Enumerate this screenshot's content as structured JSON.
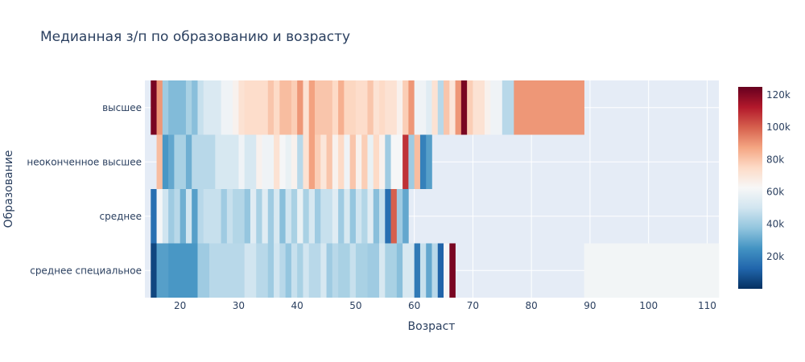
{
  "chart_data": {
    "type": "heatmap",
    "title": "Медианная з/п по образованию и возрасту",
    "xlabel": "Возраст",
    "ylabel": "Образование",
    "x_ticks": [
      20,
      30,
      40,
      50,
      60,
      70,
      80,
      90,
      100,
      110
    ],
    "xlim": [
      14,
      112
    ],
    "categories": [
      "среднее специальное",
      "среднее",
      "неоконченное высшее",
      "высшее"
    ],
    "zlim": [
      0,
      125000
    ],
    "colorbar_ticks": [
      20000,
      40000,
      60000,
      80000,
      100000,
      120000
    ],
    "colorbar_labels": [
      "20k",
      "40k",
      "60k",
      "80k",
      "100k",
      "120k"
    ],
    "colorscale": "RdBu reversed",
    "colorscale_stops": [
      "#053061",
      "#2166ac",
      "#4393c3",
      "#92c5de",
      "#d1e5f0",
      "#f7f7f7",
      "#fddbc7",
      "#f4a582",
      "#d6604d",
      "#b2182b",
      "#67001f"
    ],
    "rows": [
      {
        "name": "среднее специальное",
        "cells": [
          {
            "x0": 15,
            "x1": 16,
            "z": 5000
          },
          {
            "x0": 16,
            "x1": 18,
            "z": 28000
          },
          {
            "x0": 18,
            "x1": 23,
            "z": 26000
          },
          {
            "x0": 23,
            "x1": 25,
            "z": 40000
          },
          {
            "x0": 25,
            "x1": 31,
            "z": 45000
          },
          {
            "x0": 31,
            "x1": 33,
            "z": 50000
          },
          {
            "x0": 33,
            "x1": 35,
            "z": 45000
          },
          {
            "x0": 35,
            "x1": 36,
            "z": 40000
          },
          {
            "x0": 36,
            "x1": 37,
            "z": 50000
          },
          {
            "x0": 37,
            "x1": 38,
            "z": 45000
          },
          {
            "x0": 38,
            "x1": 39,
            "z": 38000
          },
          {
            "x0": 39,
            "x1": 40,
            "z": 48000
          },
          {
            "x0": 40,
            "x1": 41,
            "z": 42000
          },
          {
            "x0": 41,
            "x1": 42,
            "z": 50000
          },
          {
            "x0": 42,
            "x1": 44,
            "z": 45000
          },
          {
            "x0": 44,
            "x1": 45,
            "z": 52000
          },
          {
            "x0": 45,
            "x1": 46,
            "z": 40000
          },
          {
            "x0": 46,
            "x1": 47,
            "z": 45000
          },
          {
            "x0": 47,
            "x1": 49,
            "z": 42000
          },
          {
            "x0": 49,
            "x1": 50,
            "z": 48000
          },
          {
            "x0": 50,
            "x1": 52,
            "z": 42000
          },
          {
            "x0": 52,
            "x1": 54,
            "z": 40000
          },
          {
            "x0": 54,
            "x1": 55,
            "z": 52000
          },
          {
            "x0": 55,
            "x1": 57,
            "z": 42000
          },
          {
            "x0": 57,
            "x1": 58,
            "z": 36000
          },
          {
            "x0": 58,
            "x1": 60,
            "z": 52000
          },
          {
            "x0": 60,
            "x1": 61,
            "z": 18000
          },
          {
            "x0": 61,
            "x1": 62,
            "z": 48000
          },
          {
            "x0": 62,
            "x1": 63,
            "z": 30000
          },
          {
            "x0": 63,
            "x1": 64,
            "z": 45000
          },
          {
            "x0": 64,
            "x1": 65,
            "z": 12000
          },
          {
            "x0": 65,
            "x1": 66,
            "z": 62000
          },
          {
            "x0": 66,
            "x1": 67,
            "z": 122000
          },
          {
            "x0": 89,
            "x1": 112,
            "z": 61000
          }
        ]
      },
      {
        "name": "среднее",
        "cells": [
          {
            "x0": 15,
            "x1": 16,
            "z": 15000
          },
          {
            "x0": 16,
            "x1": 17,
            "z": 62000
          },
          {
            "x0": 17,
            "x1": 18,
            "z": 50000
          },
          {
            "x0": 18,
            "x1": 19,
            "z": 40000
          },
          {
            "x0": 19,
            "x1": 20,
            "z": 45000
          },
          {
            "x0": 20,
            "x1": 21,
            "z": 32000
          },
          {
            "x0": 21,
            "x1": 22,
            "z": 50000
          },
          {
            "x0": 22,
            "x1": 23,
            "z": 28000
          },
          {
            "x0": 23,
            "x1": 24,
            "z": 45000
          },
          {
            "x0": 24,
            "x1": 27,
            "z": 48000
          },
          {
            "x0": 27,
            "x1": 28,
            "z": 40000
          },
          {
            "x0": 28,
            "x1": 29,
            "z": 48000
          },
          {
            "x0": 29,
            "x1": 31,
            "z": 44000
          },
          {
            "x0": 31,
            "x1": 32,
            "z": 38000
          },
          {
            "x0": 32,
            "x1": 33,
            "z": 55000
          },
          {
            "x0": 33,
            "x1": 34,
            "z": 42000
          },
          {
            "x0": 34,
            "x1": 35,
            "z": 55000
          },
          {
            "x0": 35,
            "x1": 36,
            "z": 40000
          },
          {
            "x0": 36,
            "x1": 37,
            "z": 52000
          },
          {
            "x0": 37,
            "x1": 38,
            "z": 36000
          },
          {
            "x0": 38,
            "x1": 39,
            "z": 50000
          },
          {
            "x0": 39,
            "x1": 40,
            "z": 42000
          },
          {
            "x0": 40,
            "x1": 41,
            "z": 58000
          },
          {
            "x0": 41,
            "x1": 42,
            "z": 42000
          },
          {
            "x0": 42,
            "x1": 43,
            "z": 52000
          },
          {
            "x0": 43,
            "x1": 44,
            "z": 40000
          },
          {
            "x0": 44,
            "x1": 46,
            "z": 48000
          },
          {
            "x0": 46,
            "x1": 47,
            "z": 55000
          },
          {
            "x0": 47,
            "x1": 48,
            "z": 40000
          },
          {
            "x0": 48,
            "x1": 49,
            "z": 52000
          },
          {
            "x0": 49,
            "x1": 50,
            "z": 38000
          },
          {
            "x0": 50,
            "x1": 51,
            "z": 50000
          },
          {
            "x0": 51,
            "x1": 52,
            "z": 44000
          },
          {
            "x0": 52,
            "x1": 53,
            "z": 55000
          },
          {
            "x0": 53,
            "x1": 54,
            "z": 36000
          },
          {
            "x0": 54,
            "x1": 55,
            "z": 48000
          },
          {
            "x0": 55,
            "x1": 56,
            "z": 15000
          },
          {
            "x0": 56,
            "x1": 57,
            "z": 100000
          },
          {
            "x0": 57,
            "x1": 58,
            "z": 40000
          },
          {
            "x0": 58,
            "x1": 59,
            "z": 30000
          }
        ]
      },
      {
        "name": "неоконченное высшее",
        "cells": [
          {
            "x0": 16,
            "x1": 17,
            "z": 82000
          },
          {
            "x0": 17,
            "x1": 18,
            "z": 26000
          },
          {
            "x0": 18,
            "x1": 19,
            "z": 30000
          },
          {
            "x0": 19,
            "x1": 21,
            "z": 42000
          },
          {
            "x0": 21,
            "x1": 22,
            "z": 32000
          },
          {
            "x0": 22,
            "x1": 26,
            "z": 45000
          },
          {
            "x0": 26,
            "x1": 30,
            "z": 52000
          },
          {
            "x0": 30,
            "x1": 31,
            "z": 60000
          },
          {
            "x0": 31,
            "x1": 33,
            "z": 52000
          },
          {
            "x0": 33,
            "x1": 34,
            "z": 65000
          },
          {
            "x0": 34,
            "x1": 36,
            "z": 60000
          },
          {
            "x0": 36,
            "x1": 37,
            "z": 72000
          },
          {
            "x0": 37,
            "x1": 38,
            "z": 62000
          },
          {
            "x0": 38,
            "x1": 39,
            "z": 58000
          },
          {
            "x0": 39,
            "x1": 40,
            "z": 65000
          },
          {
            "x0": 40,
            "x1": 41,
            "z": 45000
          },
          {
            "x0": 41,
            "x1": 42,
            "z": 72000
          },
          {
            "x0": 42,
            "x1": 43,
            "z": 88000
          },
          {
            "x0": 43,
            "x1": 44,
            "z": 78000
          },
          {
            "x0": 44,
            "x1": 45,
            "z": 70000
          },
          {
            "x0": 45,
            "x1": 46,
            "z": 80000
          },
          {
            "x0": 46,
            "x1": 47,
            "z": 65000
          },
          {
            "x0": 47,
            "x1": 48,
            "z": 75000
          },
          {
            "x0": 48,
            "x1": 49,
            "z": 60000
          },
          {
            "x0": 49,
            "x1": 50,
            "z": 80000
          },
          {
            "x0": 50,
            "x1": 51,
            "z": 65000
          },
          {
            "x0": 51,
            "x1": 52,
            "z": 78000
          },
          {
            "x0": 52,
            "x1": 53,
            "z": 58000
          },
          {
            "x0": 53,
            "x1": 54,
            "z": 75000
          },
          {
            "x0": 54,
            "x1": 55,
            "z": 65000
          },
          {
            "x0": 55,
            "x1": 56,
            "z": 40000
          },
          {
            "x0": 56,
            "x1": 58,
            "z": 62000
          },
          {
            "x0": 58,
            "x1": 59,
            "z": 108000
          },
          {
            "x0": 59,
            "x1": 60,
            "z": 40000
          },
          {
            "x0": 60,
            "x1": 61,
            "z": 82000
          },
          {
            "x0": 61,
            "x1": 62,
            "z": 20000
          },
          {
            "x0": 62,
            "x1": 63,
            "z": 28000
          }
        ]
      },
      {
        "name": "высшее",
        "cells": [
          {
            "x0": 15,
            "x1": 16,
            "z": 122000
          },
          {
            "x0": 16,
            "x1": 17,
            "z": 90000
          },
          {
            "x0": 17,
            "x1": 18,
            "z": 40000
          },
          {
            "x0": 18,
            "x1": 21,
            "z": 35000
          },
          {
            "x0": 21,
            "x1": 22,
            "z": 42000
          },
          {
            "x0": 22,
            "x1": 23,
            "z": 36000
          },
          {
            "x0": 23,
            "x1": 24,
            "z": 48000
          },
          {
            "x0": 24,
            "x1": 27,
            "z": 53000
          },
          {
            "x0": 27,
            "x1": 29,
            "z": 60000
          },
          {
            "x0": 29,
            "x1": 30,
            "z": 65000
          },
          {
            "x0": 30,
            "x1": 31,
            "z": 72000
          },
          {
            "x0": 31,
            "x1": 35,
            "z": 74000
          },
          {
            "x0": 35,
            "x1": 36,
            "z": 80000
          },
          {
            "x0": 36,
            "x1": 37,
            "z": 75000
          },
          {
            "x0": 37,
            "x1": 39,
            "z": 82000
          },
          {
            "x0": 39,
            "x1": 40,
            "z": 78000
          },
          {
            "x0": 40,
            "x1": 41,
            "z": 90000
          },
          {
            "x0": 41,
            "x1": 42,
            "z": 72000
          },
          {
            "x0": 42,
            "x1": 43,
            "z": 88000
          },
          {
            "x0": 43,
            "x1": 46,
            "z": 80000
          },
          {
            "x0": 46,
            "x1": 47,
            "z": 75000
          },
          {
            "x0": 47,
            "x1": 48,
            "z": 85000
          },
          {
            "x0": 48,
            "x1": 50,
            "z": 76000
          },
          {
            "x0": 50,
            "x1": 52,
            "z": 74000
          },
          {
            "x0": 52,
            "x1": 53,
            "z": 80000
          },
          {
            "x0": 53,
            "x1": 54,
            "z": 72000
          },
          {
            "x0": 54,
            "x1": 55,
            "z": 75000
          },
          {
            "x0": 55,
            "x1": 57,
            "z": 72000
          },
          {
            "x0": 57,
            "x1": 58,
            "z": 65000
          },
          {
            "x0": 58,
            "x1": 59,
            "z": 78000
          },
          {
            "x0": 59,
            "x1": 60,
            "z": 90000
          },
          {
            "x0": 60,
            "x1": 62,
            "z": 60000
          },
          {
            "x0": 62,
            "x1": 63,
            "z": 55000
          },
          {
            "x0": 63,
            "x1": 64,
            "z": 72000
          },
          {
            "x0": 64,
            "x1": 65,
            "z": 45000
          },
          {
            "x0": 65,
            "x1": 66,
            "z": 80000
          },
          {
            "x0": 66,
            "x1": 67,
            "z": 70000
          },
          {
            "x0": 67,
            "x1": 68,
            "z": 90000
          },
          {
            "x0": 68,
            "x1": 69,
            "z": 122000
          },
          {
            "x0": 69,
            "x1": 70,
            "z": 78000
          },
          {
            "x0": 70,
            "x1": 72,
            "z": 72000
          },
          {
            "x0": 72,
            "x1": 73,
            "z": 65000
          },
          {
            "x0": 73,
            "x1": 75,
            "z": 60000
          },
          {
            "x0": 75,
            "x1": 77,
            "z": 45000
          },
          {
            "x0": 77,
            "x1": 89,
            "z": 90000
          }
        ]
      }
    ]
  }
}
